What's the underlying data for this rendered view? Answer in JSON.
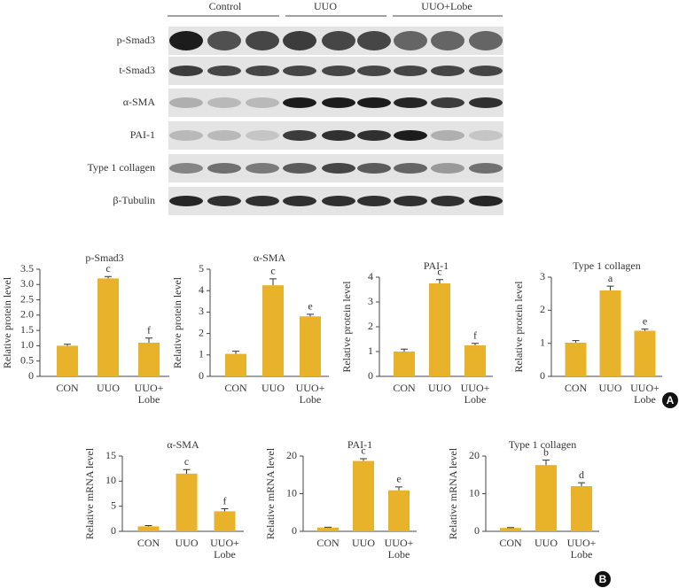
{
  "blot": {
    "groups": [
      "Control",
      "UUO",
      "UUO+Lobe"
    ],
    "rows": [
      "p-Smad3",
      "t-Smad3",
      "α-SMA",
      "PAI-1",
      "Type 1 collagen",
      "β-Tubulin"
    ]
  },
  "panels": [
    "A",
    "B"
  ],
  "chart_data": [
    {
      "type": "bar",
      "title": "p-Smad3",
      "y_label": "Relative protein level",
      "categories": [
        "CON",
        "UUO",
        "UUO+\nLobe"
      ],
      "values": [
        1.0,
        3.2,
        1.1
      ],
      "errors": [
        0.05,
        0.06,
        0.15
      ],
      "annotations": [
        null,
        "c",
        "f"
      ],
      "color": "#e9b22b",
      "ylim": [
        0,
        3.5
      ],
      "yticks": [
        0,
        0.5,
        {
          "value": 1,
          "label": "1.0"
        },
        1.5,
        {
          "value": 2,
          "label": "2.0"
        },
        2.5,
        {
          "value": 3,
          "label": "3.0"
        },
        3.5
      ]
    },
    {
      "type": "bar",
      "title": "α-SMA",
      "y_label": "Relative protein level",
      "categories": [
        "CON",
        "UUO",
        "UUO+\nLobe"
      ],
      "values": [
        1.05,
        4.25,
        2.8
      ],
      "errors": [
        0.12,
        0.3,
        0.1
      ],
      "annotations": [
        null,
        "c",
        "e"
      ],
      "color": "#e9b22b",
      "ylim": [
        0,
        5
      ],
      "yticks": [
        0,
        1,
        2,
        3,
        4,
        5
      ]
    },
    {
      "type": "bar",
      "title": "PAI-1",
      "y_label": "Relative protein level",
      "categories": [
        "CON",
        "UUO",
        "UUO+\nLobe"
      ],
      "values": [
        1.0,
        3.75,
        1.25
      ],
      "errors": [
        0.1,
        0.15,
        0.08
      ],
      "annotations": [
        null,
        "c",
        "f"
      ],
      "color": "#e9b22b",
      "ylim": [
        0,
        4
      ],
      "yticks": [
        0,
        1,
        2,
        3,
        4
      ]
    },
    {
      "type": "bar",
      "title": "Type 1 collagen",
      "y_label": "Relative protein level",
      "categories": [
        "CON",
        "UUO",
        "UUO+\nLobe"
      ],
      "values": [
        1.02,
        2.6,
        1.38
      ],
      "errors": [
        0.06,
        0.13,
        0.05
      ],
      "annotations": [
        null,
        "a",
        "e"
      ],
      "color": "#e9b22b",
      "ylim": [
        0,
        3
      ],
      "yticks": [
        0,
        1,
        2,
        3
      ]
    },
    {
      "type": "bar",
      "title": "α-SMA",
      "y_label": "Relative mRNA level",
      "categories": [
        "CON",
        "UUO",
        "UUO+\nLobe"
      ],
      "values": [
        1.0,
        11.5,
        4.0
      ],
      "errors": [
        0.15,
        0.8,
        0.5
      ],
      "annotations": [
        null,
        "c",
        "f"
      ],
      "color": "#e9b22b",
      "ylim": [
        0,
        15
      ],
      "yticks": [
        0,
        5,
        10,
        15
      ]
    },
    {
      "type": "bar",
      "title": "PAI-1",
      "y_label": "Relative mRNA level",
      "categories": [
        "CON",
        "UUO",
        "UUO+\nLobe"
      ],
      "values": [
        1.0,
        18.7,
        10.9
      ],
      "errors": [
        0.1,
        0.6,
        0.9
      ],
      "annotations": [
        null,
        "c",
        "e"
      ],
      "color": "#e9b22b",
      "ylim": [
        0,
        20
      ],
      "yticks": [
        0,
        10,
        20
      ]
    },
    {
      "type": "bar",
      "title": "Type 1 collagen",
      "y_label": "Relative mRNA level",
      "categories": [
        "CON",
        "UUO",
        "UUO+\nLobe"
      ],
      "values": [
        0.9,
        17.6,
        12.0
      ],
      "errors": [
        0.1,
        1.3,
        0.9
      ],
      "annotations": [
        null,
        "b",
        "d"
      ],
      "color": "#e9b22b",
      "ylim": [
        0,
        20
      ],
      "yticks": [
        0,
        10,
        20
      ]
    }
  ]
}
